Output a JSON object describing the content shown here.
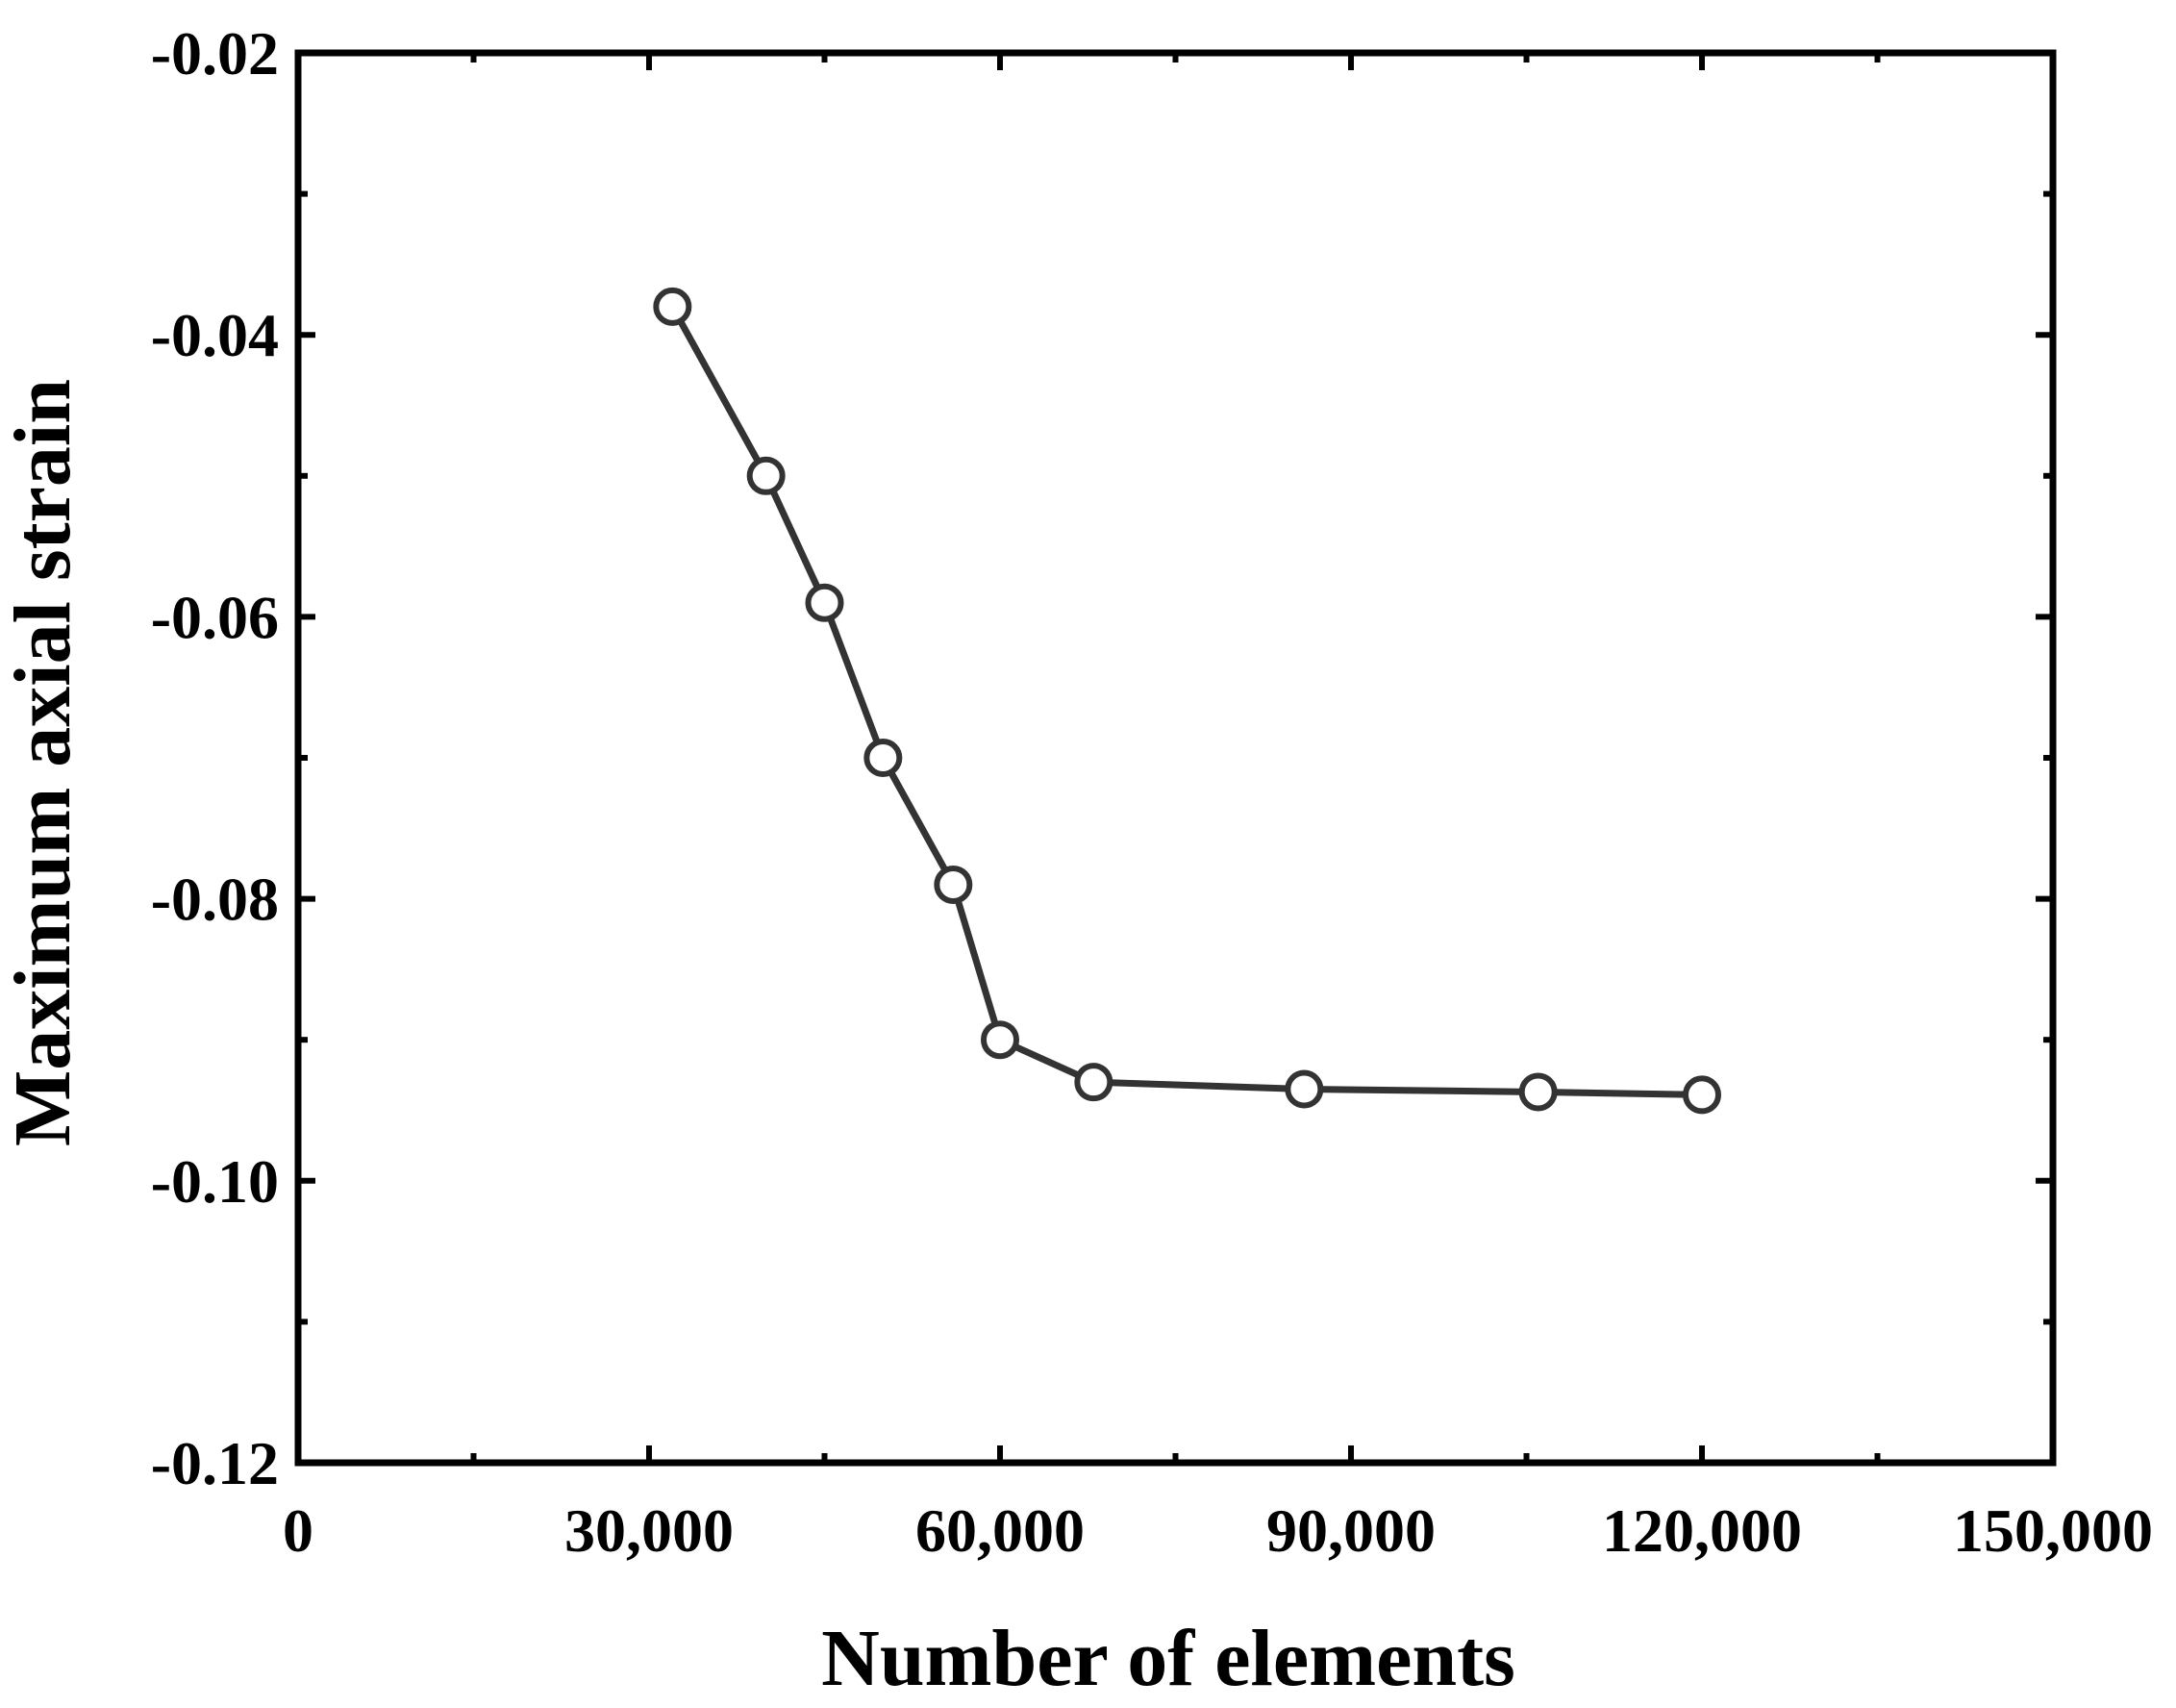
{
  "chart_data": {
    "type": "line",
    "title": "",
    "xlabel": "Number of elements",
    "ylabel": "Maximum axial strain",
    "xlim": [
      0,
      150000
    ],
    "ylim": [
      -0.12,
      -0.02
    ],
    "x_ticks": [
      0,
      30000,
      60000,
      90000,
      120000,
      150000
    ],
    "x_tick_labels": [
      "0",
      "30,000",
      "60,000",
      "90,000",
      "120,000",
      "150,000"
    ],
    "y_ticks": [
      -0.02,
      -0.04,
      -0.06,
      -0.08,
      -0.1,
      -0.12
    ],
    "y_tick_labels": [
      "-0.02",
      "-0.04",
      "-0.06",
      "-0.08",
      "-0.10",
      "-0.12"
    ],
    "grid": false,
    "legend": "none",
    "series": [
      {
        "name": "",
        "color": "#333333",
        "marker": "open-circle",
        "x": [
          32000,
          40000,
          45000,
          50000,
          56000,
          60000,
          68000,
          86000,
          106000,
          120000
        ],
        "y": [
          -0.038,
          -0.05,
          -0.059,
          -0.07,
          -0.079,
          -0.09,
          -0.093,
          -0.0935,
          -0.0937,
          -0.0939
        ]
      }
    ]
  }
}
